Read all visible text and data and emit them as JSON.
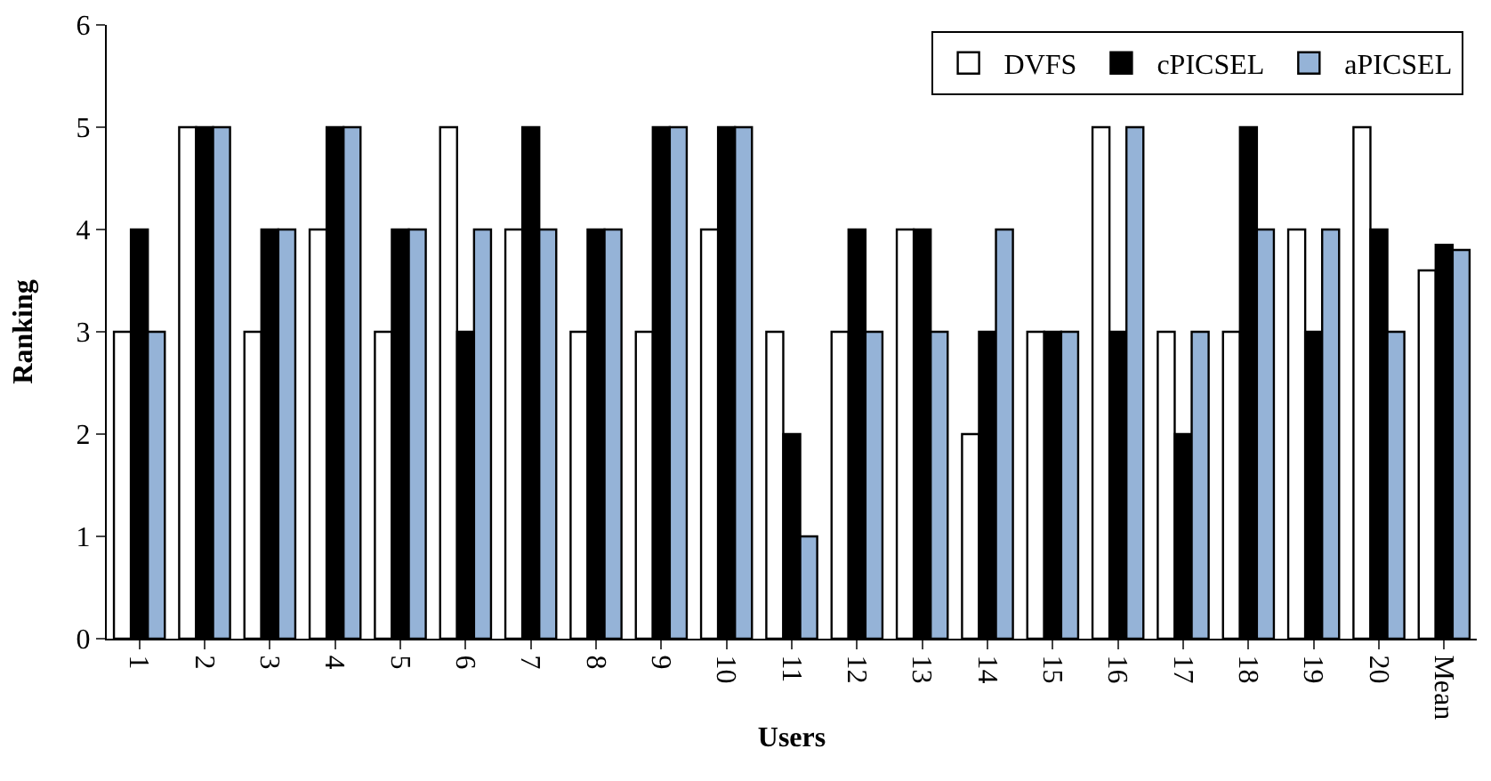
{
  "chart_data": {
    "type": "bar",
    "xlabel": "Users",
    "ylabel": "Ranking",
    "categories": [
      "1",
      "2",
      "3",
      "4",
      "5",
      "6",
      "7",
      "8",
      "9",
      "10",
      "11",
      "12",
      "13",
      "14",
      "15",
      "16",
      "17",
      "18",
      "19",
      "20",
      "Mean"
    ],
    "series": [
      {
        "name": "DVFS",
        "color": "#ffffff",
        "values": [
          3,
          5,
          3,
          4,
          3,
          5,
          4,
          3,
          3,
          4,
          3,
          3,
          4,
          2,
          3,
          5,
          3,
          3,
          4,
          5,
          3.6
        ]
      },
      {
        "name": "cPICSEL",
        "color": "#000000",
        "values": [
          4,
          5,
          4,
          5,
          4,
          3,
          5,
          4,
          5,
          5,
          2,
          4,
          4,
          3,
          3,
          3,
          2,
          5,
          3,
          4,
          3.85
        ]
      },
      {
        "name": "aPICSEL",
        "color": "#95b3d7",
        "values": [
          3,
          5,
          4,
          5,
          4,
          4,
          4,
          4,
          5,
          5,
          1,
          3,
          3,
          4,
          3,
          5,
          3,
          4,
          4,
          3,
          3.8
        ]
      }
    ],
    "ylim": [
      0,
      6
    ],
    "yticks": [
      0,
      1,
      2,
      3,
      4,
      5,
      6
    ],
    "grid": false,
    "legend": "top right"
  }
}
